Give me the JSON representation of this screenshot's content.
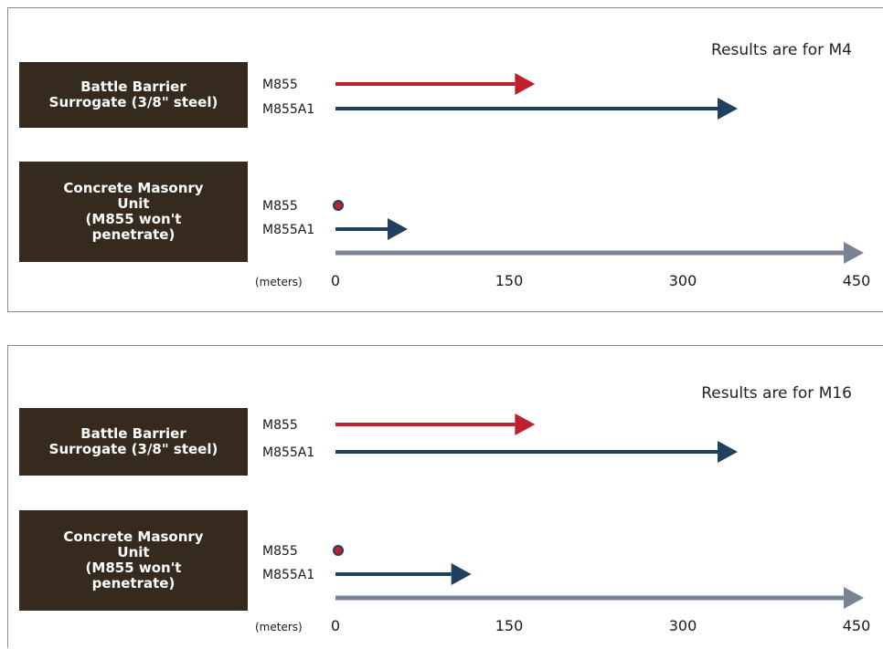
{
  "colors": {
    "m855": "#c0202d",
    "m855a1": "#1f4060",
    "scale": "#7a8396",
    "box_bg": "#352a1d",
    "box_text": "#ffffff",
    "dot": "#c0202d",
    "dot_ring": "#1f4060"
  },
  "chart_data": [
    {
      "type": "bar",
      "orientation": "horizontal",
      "title": "Results are for M4",
      "xlabel": "(meters)",
      "ticks": [
        "0",
        "150",
        "300",
        "450"
      ],
      "xlim": [
        0,
        450
      ],
      "groups": [
        {
          "name": "Battle Barrier\nSurrogate (3/8\" steel)",
          "series": [
            {
              "name": "M855",
              "value": 155,
              "marker": "arrow",
              "color": "#c0202d"
            },
            {
              "name": "M855A1",
              "value": 330,
              "marker": "arrow",
              "color": "#1f4060"
            }
          ]
        },
        {
          "name": "Concrete Masonry\nUnit\n(M855 won't\npenetrate)",
          "series": [
            {
              "name": "M855",
              "value": 0,
              "marker": "dot",
              "color": "#c0202d"
            },
            {
              "name": "M855A1",
              "value": 45,
              "marker": "arrow",
              "color": "#1f4060"
            }
          ]
        }
      ]
    },
    {
      "type": "bar",
      "orientation": "horizontal",
      "title": "Results are for M16",
      "xlabel": "(meters)",
      "ticks": [
        "0",
        "150",
        "300",
        "450"
      ],
      "xlim": [
        0,
        450
      ],
      "groups": [
        {
          "name": "Battle Barrier\nSurrogate (3/8\" steel)",
          "series": [
            {
              "name": "M855",
              "value": 155,
              "marker": "arrow",
              "color": "#c0202d"
            },
            {
              "name": "M855A1",
              "value": 330,
              "marker": "arrow",
              "color": "#1f4060"
            }
          ]
        },
        {
          "name": "Concrete Masonry\nUnit\n(M855 won't\npenetrate)",
          "series": [
            {
              "name": "M855",
              "value": 0,
              "marker": "dot",
              "color": "#c0202d"
            },
            {
              "name": "M855A1",
              "value": 100,
              "marker": "arrow",
              "color": "#1f4060"
            }
          ]
        }
      ]
    }
  ]
}
